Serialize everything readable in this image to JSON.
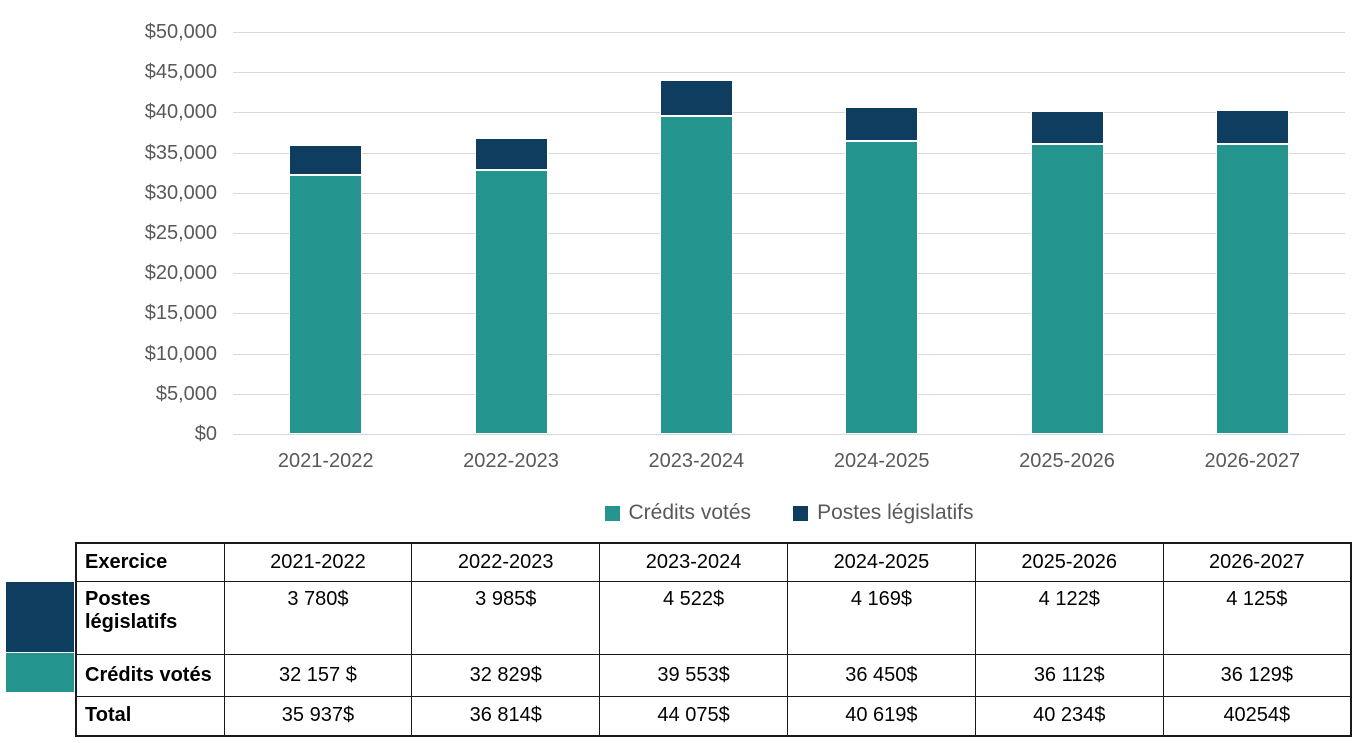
{
  "chart_data": {
    "type": "bar",
    "stacked": true,
    "title": "",
    "xlabel": "",
    "ylabel": "",
    "categories": [
      "2021-2022",
      "2022-2023",
      "2023-2024",
      "2024-2025",
      "2025-2026",
      "2026-2027"
    ],
    "series": [
      {
        "name": "Crédits votés",
        "color": "#24948f",
        "values": [
          32157,
          32829,
          39553,
          36450,
          36112,
          36129
        ]
      },
      {
        "name": "Postes législatifs",
        "color": "#0e3d60",
        "values": [
          3780,
          3985,
          4522,
          4169,
          4122,
          4125
        ]
      }
    ],
    "totals": [
      35937,
      36814,
      44075,
      40619,
      40234,
      40254
    ],
    "ylim": [
      0,
      50000
    ],
    "y_tick_step": 5000,
    "y_ticks": [
      "$50,000",
      "$45,000",
      "$40,000",
      "$35,000",
      "$30,000",
      "$25,000",
      "$20,000",
      "$15,000",
      "$10,000",
      "$5,000",
      "$0"
    ],
    "grid": true,
    "legend_position": "bottom-center"
  },
  "legend": {
    "items": [
      {
        "label": "Crédits votés",
        "color": "#24948f"
      },
      {
        "label": "Postes législatifs",
        "color": "#0e3d60"
      }
    ]
  },
  "table": {
    "header": [
      "Exercice",
      "2021-2022",
      "2022-2023",
      "2023-2024",
      "2024-2025",
      "2025-2026",
      "2026-2027"
    ],
    "rows": [
      {
        "label": "Postes législatifs",
        "swatch": "#0e3d60",
        "values": [
          "3 780$",
          "3 985$",
          "4 522$",
          "4 169$",
          "4 122$",
          "4 125$"
        ]
      },
      {
        "label": "Crédits votés",
        "swatch": "#24948f",
        "values": [
          "32 157 $",
          "32 829$",
          "39 553$",
          "36 450$",
          "36 112$",
          "36 129$"
        ]
      },
      {
        "label": "Total",
        "swatch": null,
        "values": [
          "35 937$",
          "36 814$",
          "44 075$",
          "40 619$",
          "40 234$",
          "40254$"
        ]
      }
    ]
  },
  "colors": {
    "axis_text": "#595959",
    "gridline": "#d9d9d9",
    "table_border": "#1a1a1a",
    "background": "#ffffff"
  }
}
